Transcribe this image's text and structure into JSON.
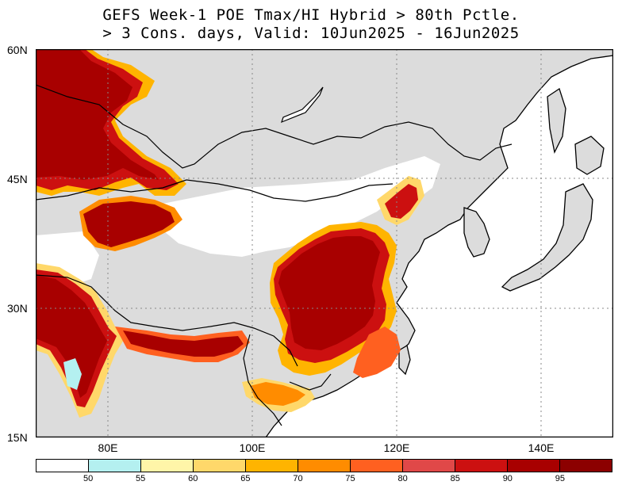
{
  "title": {
    "line1": "GEFS Week-1 POE Tmax/HI Hybrid > 80th Pctle.",
    "line2": "> 3 Cons. days, Valid: 10Jun2025 - 16Jun2025"
  },
  "map": {
    "lat_labels": [
      "60N",
      "45N",
      "30N",
      "15N"
    ],
    "lon_labels": [
      "80E",
      "100E",
      "120E",
      "140E"
    ],
    "extent": {
      "lon": [
        70,
        150
      ],
      "lat": [
        15,
        60
      ]
    },
    "ocean_color": "#ffffff",
    "land_no_data_color": "#dcdcdc"
  },
  "colorbar": {
    "ticks": [
      "50",
      "55",
      "60",
      "65",
      "70",
      "75",
      "80",
      "85",
      "90",
      "95"
    ],
    "colors": [
      "#ffffff",
      "#b4f0f0",
      "#fff5a8",
      "#ffd86a",
      "#ffb400",
      "#ff8c00",
      "#ff6020",
      "#e04848",
      "#cc1010",
      "#a80000",
      "#8c0000"
    ]
  }
}
